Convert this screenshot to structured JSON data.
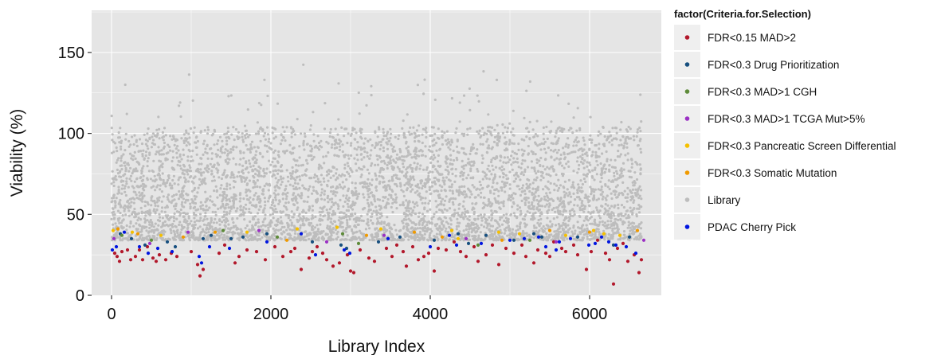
{
  "chart_data": {
    "type": "scatter",
    "title": "",
    "xlabel": "Library Index",
    "ylabel": "Viability (%)",
    "xlim": [
      -250,
      6900
    ],
    "ylim": [
      0,
      176
    ],
    "x_ticks": [
      0,
      2000,
      4000,
      6000
    ],
    "x_tick_labels": [
      "0",
      "2000",
      "4000",
      "6000"
    ],
    "y_ticks": [
      0,
      50,
      100,
      150
    ],
    "y_tick_labels": [
      "0",
      "50",
      "100",
      "150"
    ],
    "grid": true,
    "background": "#e5e5e5",
    "legend_title": "factor(Criteria.for.Selection)",
    "legend_placement": "right",
    "series": [
      {
        "name": "FDR<0.15 MAD>2",
        "color": "#b2182b",
        "points": [
          [
            40,
            26
          ],
          [
            70,
            24
          ],
          [
            100,
            21
          ],
          [
            130,
            27
          ],
          [
            200,
            28
          ],
          [
            240,
            22
          ],
          [
            300,
            24
          ],
          [
            350,
            28
          ],
          [
            390,
            22
          ],
          [
            450,
            30
          ],
          [
            520,
            23
          ],
          [
            560,
            21
          ],
          [
            600,
            25
          ],
          [
            680,
            22
          ],
          [
            750,
            26
          ],
          [
            820,
            24
          ],
          [
            1000,
            27
          ],
          [
            1080,
            19
          ],
          [
            1110,
            12
          ],
          [
            1150,
            16
          ],
          [
            1350,
            26
          ],
          [
            1420,
            31
          ],
          [
            1550,
            20
          ],
          [
            1600,
            24
          ],
          [
            1700,
            28
          ],
          [
            1820,
            27
          ],
          [
            1930,
            22
          ],
          [
            2050,
            30
          ],
          [
            2150,
            24
          ],
          [
            2250,
            27
          ],
          [
            2300,
            29
          ],
          [
            2380,
            16
          ],
          [
            2480,
            23
          ],
          [
            2520,
            27
          ],
          [
            2580,
            30
          ],
          [
            2650,
            26
          ],
          [
            2700,
            22
          ],
          [
            2780,
            18
          ],
          [
            2860,
            20
          ],
          [
            2960,
            25
          ],
          [
            3000,
            15
          ],
          [
            3040,
            14
          ],
          [
            3120,
            28
          ],
          [
            3230,
            23
          ],
          [
            3300,
            21
          ],
          [
            3450,
            29
          ],
          [
            3520,
            24
          ],
          [
            3580,
            31
          ],
          [
            3660,
            27
          ],
          [
            3700,
            18
          ],
          [
            3780,
            30
          ],
          [
            3850,
            22
          ],
          [
            3920,
            24
          ],
          [
            3980,
            26
          ],
          [
            4050,
            15
          ],
          [
            4100,
            29
          ],
          [
            4200,
            28
          ],
          [
            4300,
            33
          ],
          [
            4380,
            27
          ],
          [
            4450,
            24
          ],
          [
            4550,
            30
          ],
          [
            4600,
            21
          ],
          [
            4700,
            25
          ],
          [
            4780,
            31
          ],
          [
            4860,
            19
          ],
          [
            4950,
            29
          ],
          [
            5050,
            26
          ],
          [
            5150,
            31
          ],
          [
            5200,
            24
          ],
          [
            5300,
            20
          ],
          [
            5350,
            28
          ],
          [
            5450,
            26
          ],
          [
            5500,
            24
          ],
          [
            5550,
            33
          ],
          [
            5650,
            29
          ],
          [
            5700,
            27
          ],
          [
            5800,
            31
          ],
          [
            5850,
            25
          ],
          [
            5960,
            16
          ],
          [
            6020,
            27
          ],
          [
            6100,
            34
          ],
          [
            6200,
            26
          ],
          [
            6250,
            22
          ],
          [
            6300,
            7
          ],
          [
            6350,
            29
          ],
          [
            6420,
            32
          ],
          [
            6480,
            21
          ],
          [
            6560,
            25
          ],
          [
            6620,
            14
          ],
          [
            6650,
            22
          ]
        ]
      },
      {
        "name": "FDR<0.3 Drug Prioritization",
        "color": "#174f7f",
        "points": [
          [
            110,
            38
          ],
          [
            250,
            35
          ],
          [
            420,
            31
          ],
          [
            700,
            33
          ],
          [
            800,
            30
          ],
          [
            1150,
            35
          ],
          [
            1250,
            37
          ],
          [
            1500,
            35
          ],
          [
            1650,
            36
          ],
          [
            1950,
            38
          ],
          [
            2520,
            33
          ],
          [
            2880,
            31
          ],
          [
            2950,
            29
          ],
          [
            3350,
            33
          ],
          [
            3620,
            36
          ],
          [
            4050,
            34
          ],
          [
            4350,
            38
          ],
          [
            4480,
            32
          ],
          [
            4700,
            37
          ],
          [
            5050,
            34
          ],
          [
            5300,
            38
          ],
          [
            5400,
            36
          ],
          [
            5850,
            36
          ],
          [
            6300,
            31
          ],
          [
            6500,
            36
          ]
        ]
      },
      {
        "name": "FDR<0.3 MAD>1 CGH",
        "color": "#5e8b3a",
        "points": [
          [
            130,
            37
          ],
          [
            500,
            34
          ],
          [
            1400,
            40
          ],
          [
            2080,
            36
          ],
          [
            2900,
            38
          ],
          [
            3100,
            32
          ],
          [
            4600,
            31
          ],
          [
            5250,
            34
          ]
        ]
      },
      {
        "name": "FDR<0.3 MAD>1 TCGA Mut>5%",
        "color": "#9b30c4",
        "points": [
          [
            30,
            35
          ],
          [
            480,
            32
          ],
          [
            960,
            39
          ],
          [
            1850,
            40
          ],
          [
            2700,
            33
          ],
          [
            3420,
            37
          ],
          [
            4450,
            35
          ],
          [
            5580,
            33
          ],
          [
            6680,
            34
          ]
        ]
      },
      {
        "name": "FDR<0.3 Pancreatic Screen Differential",
        "color": "#f5c000",
        "points": [
          [
            20,
            40
          ],
          [
            260,
            39
          ],
          [
            620,
            37
          ],
          [
            1700,
            39
          ],
          [
            2330,
            41
          ],
          [
            2830,
            42
          ],
          [
            3380,
            41
          ],
          [
            4270,
            40
          ],
          [
            4350,
            35
          ],
          [
            4860,
            39
          ],
          [
            5120,
            38
          ],
          [
            5700,
            37
          ],
          [
            6050,
            40
          ],
          [
            6180,
            38
          ],
          [
            6380,
            37
          ]
        ]
      },
      {
        "name": "FDR<0.3 Somatic Mutation",
        "color": "#f09a00",
        "points": [
          [
            80,
            41
          ],
          [
            330,
            38
          ],
          [
            900,
            36
          ],
          [
            1300,
            39
          ],
          [
            2200,
            34
          ],
          [
            3200,
            37
          ],
          [
            3800,
            39
          ],
          [
            4150,
            36
          ],
          [
            4900,
            34
          ],
          [
            5500,
            40
          ],
          [
            6000,
            39
          ],
          [
            6600,
            40
          ]
        ]
      },
      {
        "name": "Library",
        "color": "#bdbdbd",
        "points": []
      },
      {
        "name": "PDAC Cherry Pick",
        "color": "#0015e0",
        "points": [
          [
            10,
            28
          ],
          [
            60,
            30
          ],
          [
            160,
            39
          ],
          [
            350,
            30
          ],
          [
            460,
            26
          ],
          [
            580,
            29
          ],
          [
            760,
            27
          ],
          [
            1100,
            24
          ],
          [
            1130,
            20
          ],
          [
            1230,
            30
          ],
          [
            1480,
            29
          ],
          [
            1950,
            33
          ],
          [
            2380,
            38
          ],
          [
            2560,
            25
          ],
          [
            2920,
            28
          ],
          [
            2990,
            26
          ],
          [
            3470,
            35
          ],
          [
            4000,
            30
          ],
          [
            4240,
            37
          ],
          [
            4330,
            31
          ],
          [
            4640,
            32
          ],
          [
            5000,
            34
          ],
          [
            5180,
            35
          ],
          [
            5360,
            36
          ],
          [
            5450,
            30
          ],
          [
            5580,
            28
          ],
          [
            5620,
            33
          ],
          [
            5760,
            35
          ],
          [
            5990,
            31
          ],
          [
            6070,
            32
          ],
          [
            6150,
            36
          ],
          [
            6240,
            33
          ],
          [
            6330,
            31
          ],
          [
            6460,
            30
          ],
          [
            6580,
            26
          ]
        ]
      }
    ],
    "library_points_note": ""
  }
}
